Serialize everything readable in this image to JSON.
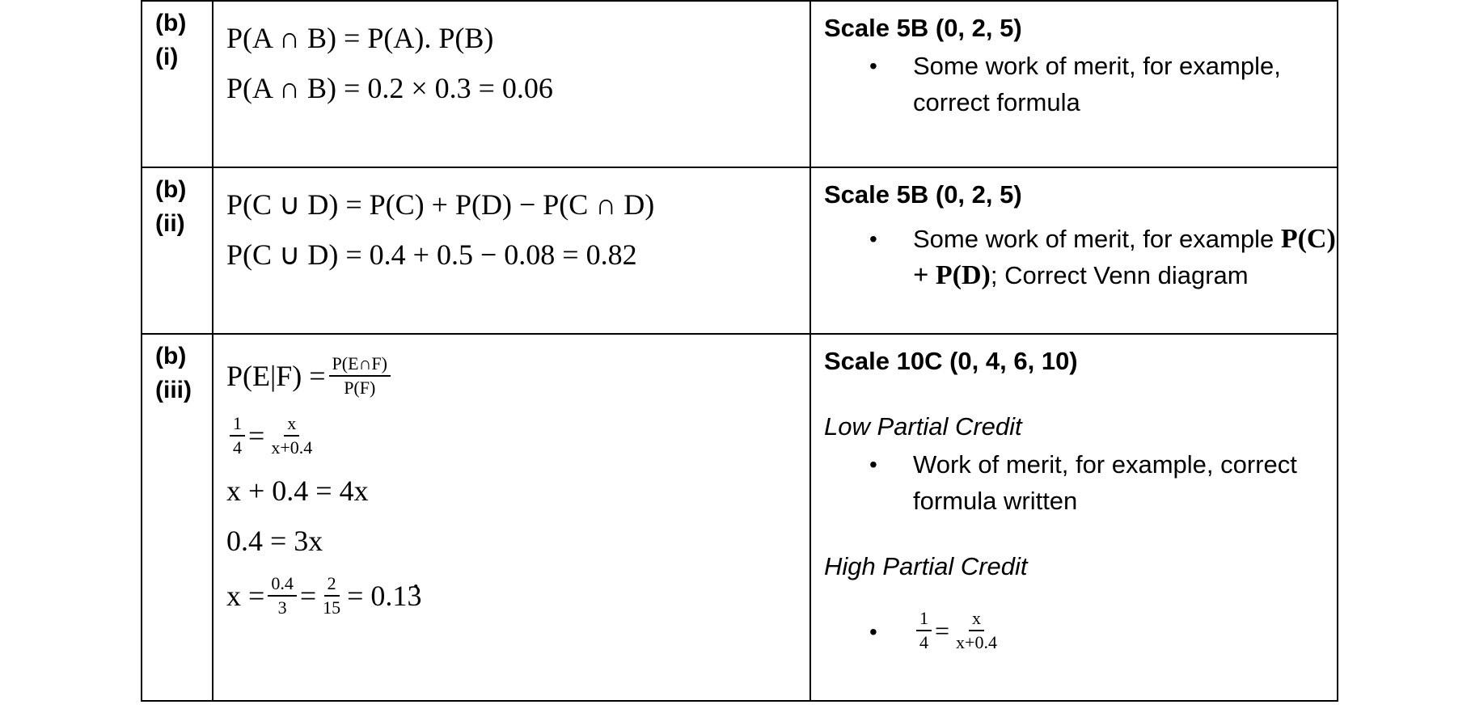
{
  "rows": [
    {
      "part": [
        "(b)",
        "(i)"
      ],
      "solution": {
        "line1": "P(A ∩ B) = P(A). P(B)",
        "line2": "P(A ∩ B) = 0.2 × 0.3 = 0.06"
      },
      "scale": "Scale 5B (0, 2, 5)",
      "bullets": [
        "Some work of merit, for example, correct formula"
      ]
    },
    {
      "part": [
        "(b)",
        "(ii)"
      ],
      "solution": {
        "line1": "P(C ∪ D) = P(C) + P(D) − P(C ∩ D)",
        "line2": "P(C ∪ D) = 0.4 + 0.5 − 0.08 = 0.82"
      },
      "scale": "Scale 5B (0, 2, 5)",
      "bullet_text_before": "Some work of merit, for example",
      "bullet_math": "P(C) + P(D)",
      "bullet_text_after": "; Correct Venn diagram"
    },
    {
      "part": [
        "(b)",
        "(iii)"
      ],
      "solution": {
        "cond_lhs": "P(E|F) =",
        "cond_num": "P(E∩F)",
        "cond_den": "P(F)",
        "eq2_num": "1",
        "eq2_den": "4",
        "eq2_rnum": "x",
        "eq2_rden": "x+0.4",
        "eq3": "x + 0.4 = 4x",
        "eq4": "0.4 = 3x",
        "eq5_lhs": "x =",
        "eq5_f1_num": "0.4",
        "eq5_f1_den": "3",
        "eq5_f2_num": "2",
        "eq5_f2_den": "15",
        "eq5_result_prefix": "= 0.1",
        "eq5_result_dot": "3"
      },
      "scale": "Scale 10C (0, 4, 6, 10)",
      "low_credit": "Low Partial Credit",
      "low_bullet": "Work of merit, for example, correct formula written",
      "high_credit": "High Partial Credit",
      "high_bullet": {
        "num": "1",
        "den": "4",
        "rnum": "x",
        "rden": "x+0.4"
      }
    }
  ],
  "symbols": {
    "bullet": "•",
    "eq": "="
  }
}
